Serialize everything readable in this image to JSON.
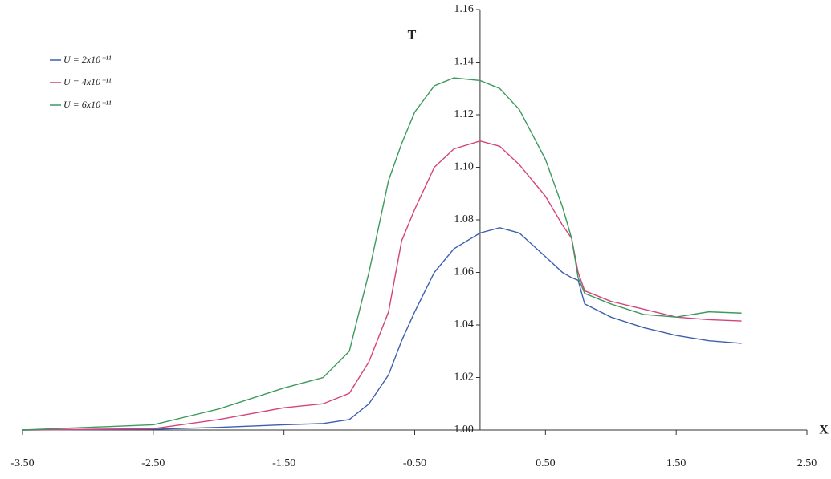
{
  "chart_data": {
    "type": "line",
    "y_label": "T",
    "x_label": "X",
    "x": [
      -3.5,
      -2.5,
      -2.0,
      -1.5,
      -1.2,
      -1.0,
      -0.85,
      -0.7,
      -0.6,
      -0.5,
      -0.35,
      -0.2,
      0,
      0.15,
      0.3,
      0.5,
      0.63,
      0.7,
      0.75,
      0.8,
      1.0,
      1.25,
      1.5,
      1.75,
      2.0
    ],
    "series": [
      {
        "name": "U = 2x10⁻¹¹",
        "color": "#3d5fae",
        "values": [
          1.0,
          1.0003,
          1.001,
          1.002,
          1.0025,
          1.004,
          1.01,
          1.021,
          1.034,
          1.045,
          1.06,
          1.069,
          1.075,
          1.077,
          1.075,
          1.066,
          1.06,
          1.058,
          1.057,
          1.048,
          1.043,
          1.039,
          1.036,
          1.034,
          1.033
        ]
      },
      {
        "name": "U = 4x10⁻¹¹",
        "color": "#d4437c",
        "values": [
          1.0,
          1.0005,
          1.004,
          1.0085,
          1.01,
          1.014,
          1.026,
          1.045,
          1.072,
          1.084,
          1.1,
          1.107,
          1.11,
          1.108,
          1.101,
          1.089,
          1.078,
          1.073,
          1.06,
          1.053,
          1.049,
          1.046,
          1.043,
          1.042,
          1.0415
        ]
      },
      {
        "name": "U = 6x10⁻¹¹",
        "color": "#3b9a5c",
        "values": [
          1.0,
          1.002,
          1.008,
          1.016,
          1.02,
          1.03,
          1.06,
          1.095,
          1.109,
          1.121,
          1.131,
          1.134,
          1.133,
          1.13,
          1.122,
          1.103,
          1.085,
          1.073,
          1.058,
          1.052,
          1.048,
          1.044,
          1.043,
          1.045,
          1.0445
        ]
      }
    ],
    "xlim": [
      -3.5,
      2.5
    ],
    "xticks": [
      {
        "value": -3.5,
        "label": "-3.50"
      },
      {
        "value": -2.5,
        "label": "-2.50"
      },
      {
        "value": -1.5,
        "label": "-1.50"
      },
      {
        "value": -0.5,
        "label": "-0.50"
      },
      {
        "value": 0.5,
        "label": "0.50"
      },
      {
        "value": 1.5,
        "label": "1.50"
      },
      {
        "value": 2.5,
        "label": "2.50"
      }
    ],
    "ylim": [
      1.0,
      1.16
    ],
    "yticks": [
      {
        "value": 1.0,
        "label": "1.00"
      },
      1.02,
      1.04,
      1.06,
      1.08,
      {
        "value": 1.1,
        "label": "1.10"
      },
      1.12,
      1.14,
      1.16
    ],
    "grid": false,
    "legend": "upper left"
  }
}
